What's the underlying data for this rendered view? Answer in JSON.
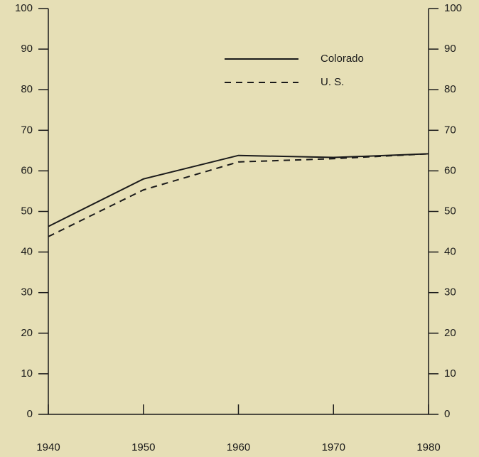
{
  "chart_data": {
    "type": "line",
    "x": [
      1940,
      1950,
      1960,
      1970,
      1980
    ],
    "series": [
      {
        "name": "Colorado",
        "color": "#1a1a1a",
        "dash": "solid",
        "values": [
          46.3,
          58.0,
          63.8,
          63.3,
          64.2
        ]
      },
      {
        "name": "U. S.",
        "color": "#1a1a1a",
        "dash": "dashed",
        "values": [
          43.8,
          55.3,
          62.2,
          63.0,
          64.2
        ]
      }
    ],
    "xlim": [
      1940,
      1980
    ],
    "xticks": [
      1940,
      1950,
      1960,
      1970,
      1980
    ],
    "ylim": [
      0,
      100
    ],
    "yticks": [
      0,
      10,
      20,
      30,
      40,
      50,
      60,
      70,
      80,
      90,
      100
    ],
    "y2lim": [
      0,
      100
    ],
    "y2ticks": [
      0,
      10,
      20,
      30,
      40,
      50,
      60,
      70,
      80,
      90,
      100
    ],
    "grid": false
  }
}
